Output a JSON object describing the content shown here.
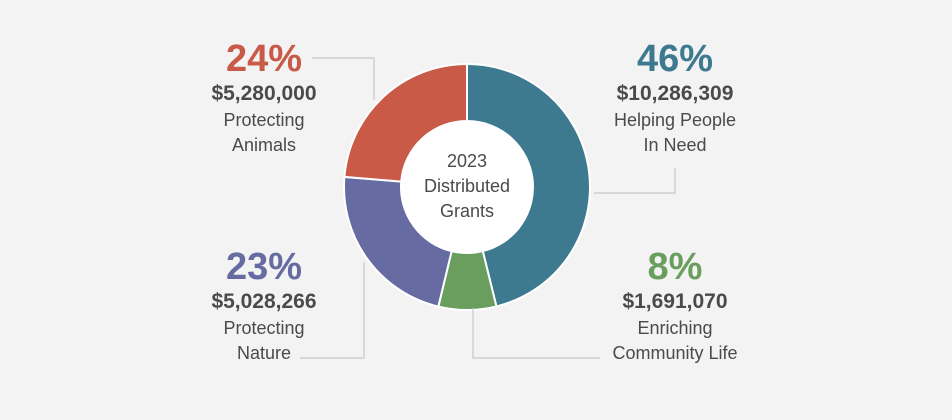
{
  "center": {
    "year": "2023",
    "line1": "Distributed",
    "line2": "Grants"
  },
  "chart_data": {
    "type": "pie",
    "title": "",
    "slices": [
      {
        "percent_label": "46%",
        "value": 10286309,
        "amount_label": "$10,286,309",
        "name_line1": "Helping People",
        "name_line2": "In Need",
        "color": "#3e7a8f"
      },
      {
        "percent_label": "8%",
        "value": 1691070,
        "amount_label": "$1,691,070",
        "name_line1": "Enriching",
        "name_line2": "Community Life",
        "color": "#699e5f"
      },
      {
        "percent_label": "23%",
        "value": 5028266,
        "amount_label": "$5,028,266",
        "name_line1": "Protecting",
        "name_line2": "Nature",
        "color": "#666ca1"
      },
      {
        "percent_label": "24%",
        "value": 5280000,
        "amount_label": "$5,280,000",
        "name_line1": "Protecting",
        "name_line2": "Animals",
        "color": "#c85a47"
      }
    ]
  }
}
